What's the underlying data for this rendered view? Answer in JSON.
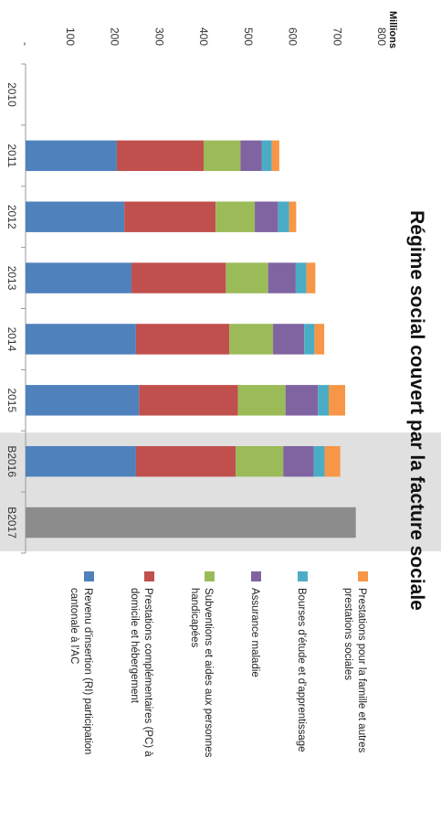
{
  "chart_data": {
    "type": "bar",
    "stacked": true,
    "title": "Régime social couvert par la facture sociale",
    "unit_label": "Millions",
    "categories": [
      "2010",
      "2011",
      "2012",
      "2013",
      "2014",
      "2015",
      "B2016",
      "B2017"
    ],
    "ylim": [
      0,
      800
    ],
    "y_ticks": [
      "-",
      "100",
      "200",
      "300",
      "400",
      "500",
      "600",
      "700",
      "800"
    ],
    "y_tick_values": [
      0,
      100,
      200,
      300,
      400,
      500,
      600,
      700,
      800
    ],
    "grid": false,
    "shaded_categories": [
      "B2016",
      "B2017"
    ],
    "shade_color": "#e0e0e0",
    "series": [
      {
        "name": "Revenu d'insertion (RI) participation cantonale à l'AC",
        "color": "#4f81bd",
        "values": [
          0,
          205,
          222,
          238,
          248,
          255,
          248,
          0
        ]
      },
      {
        "name": "Prestations complémentaires (PC) à domicile et hébergement",
        "color": "#c0504d",
        "values": [
          0,
          195,
          205,
          212,
          210,
          222,
          224,
          0
        ]
      },
      {
        "name": "Subventions et aides aux personnes handicapées",
        "color": "#9bbb59",
        "values": [
          0,
          83,
          88,
          95,
          98,
          107,
          107,
          0
        ]
      },
      {
        "name": "Assurance maladie",
        "color": "#8064a2",
        "values": [
          0,
          48,
          52,
          62,
          70,
          73,
          68,
          0
        ]
      },
      {
        "name": "Bourses d'étude et d'apprentissage",
        "color": "#4bacc6",
        "values": [
          0,
          22,
          25,
          24,
          23,
          24,
          25,
          0
        ]
      },
      {
        "name": "Prestations pour la famille et autres prestations sociales",
        "color": "#f79646",
        "values": [
          0,
          17,
          16,
          20,
          22,
          37,
          35,
          0
        ]
      }
    ],
    "total_only": {
      "category": "B2017",
      "value": 742,
      "color": "#8c8c8c"
    },
    "legend_position": "right"
  }
}
